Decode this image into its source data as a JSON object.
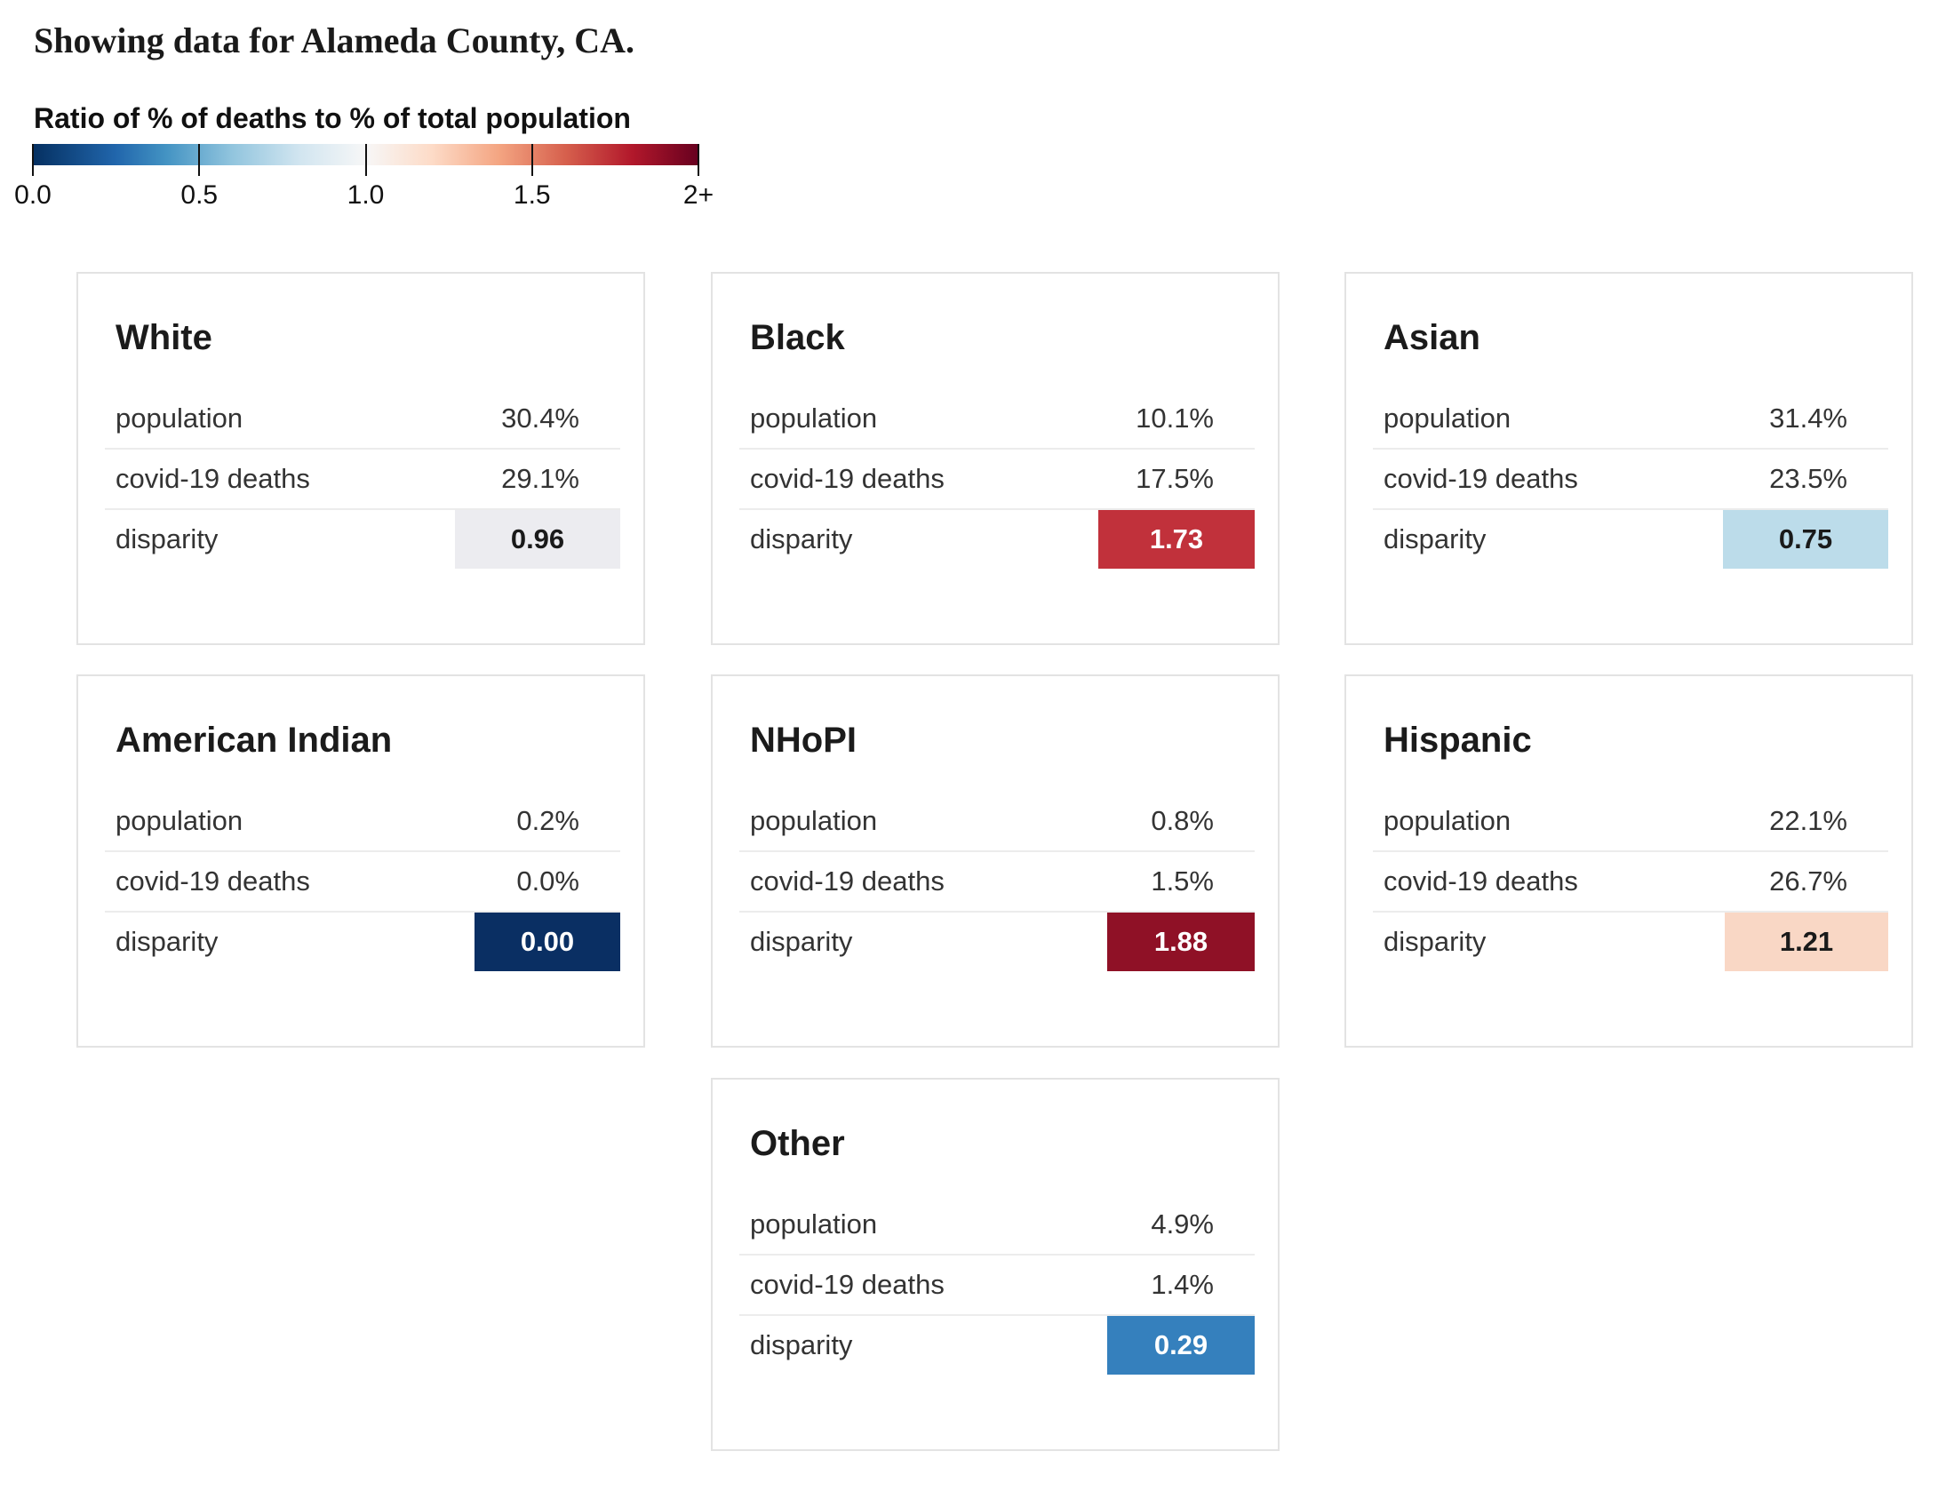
{
  "header": {
    "title": "Showing data for Alameda County, CA."
  },
  "legend": {
    "title": "Ratio of % of deaths to % of total population",
    "ticks": [
      "0.0",
      "0.5",
      "1.0",
      "1.5",
      "2+"
    ],
    "tick_values": [
      0,
      0.5,
      1.0,
      1.5,
      2.0
    ],
    "domain": [
      0,
      2
    ],
    "colors": [
      "#053061",
      "#2166ac",
      "#4393c3",
      "#92c5de",
      "#d1e5f0",
      "#f7f7f7",
      "#fddbc7",
      "#f4a582",
      "#d6604d",
      "#b2182b",
      "#67001f"
    ]
  },
  "row_labels": {
    "population": "population",
    "deaths": "covid-19 deaths",
    "disparity": "disparity"
  },
  "cards": [
    {
      "name": "White",
      "population": "30.4%",
      "deaths": "29.1%",
      "disparity": "0.96",
      "disparity_value": 0.96,
      "box_color": "#ececf0",
      "text_color": "#1a1a1a"
    },
    {
      "name": "Black",
      "population": "10.1%",
      "deaths": "17.5%",
      "disparity": "1.73",
      "disparity_value": 1.73,
      "box_color": "#c1313b",
      "text_color": "#ffffff"
    },
    {
      "name": "Asian",
      "population": "31.4%",
      "deaths": "23.5%",
      "disparity": "0.75",
      "disparity_value": 0.75,
      "box_color": "#bcdcea",
      "text_color": "#1a1a1a"
    },
    {
      "name": "American Indian",
      "population": "0.2%",
      "deaths": "0.0%",
      "disparity": "0.00",
      "disparity_value": 0.0,
      "box_color": "#0a2f63",
      "text_color": "#ffffff"
    },
    {
      "name": "NHoPI",
      "population": "0.8%",
      "deaths": "1.5%",
      "disparity": "1.88",
      "disparity_value": 1.88,
      "box_color": "#8f1126",
      "text_color": "#ffffff"
    },
    {
      "name": "Hispanic",
      "population": "22.1%",
      "deaths": "26.7%",
      "disparity": "1.21",
      "disparity_value": 1.21,
      "box_color": "#f9d7c5",
      "text_color": "#1a1a1a"
    },
    {
      "name": "Other",
      "population": "4.9%",
      "deaths": "1.4%",
      "disparity": "0.29",
      "disparity_value": 0.29,
      "box_color": "#3580bd",
      "text_color": "#ffffff"
    }
  ],
  "chart_data": {
    "type": "table",
    "title": "Showing data for Alameda County, CA.",
    "columns": [
      "population",
      "covid-19 deaths",
      "disparity"
    ],
    "rows": [
      {
        "group": "White",
        "population": 30.4,
        "covid-19 deaths": 29.1,
        "disparity": 0.96
      },
      {
        "group": "Black",
        "population": 10.1,
        "covid-19 deaths": 17.5,
        "disparity": 1.73
      },
      {
        "group": "Asian",
        "population": 31.4,
        "covid-19 deaths": 23.5,
        "disparity": 0.75
      },
      {
        "group": "American Indian",
        "population": 0.2,
        "covid-19 deaths": 0.0,
        "disparity": 0.0
      },
      {
        "group": "NHoPI",
        "population": 0.8,
        "covid-19 deaths": 1.5,
        "disparity": 1.88
      },
      {
        "group": "Hispanic",
        "population": 22.1,
        "covid-19 deaths": 26.7,
        "disparity": 1.21
      },
      {
        "group": "Other",
        "population": 4.9,
        "covid-19 deaths": 1.4,
        "disparity": 0.29
      }
    ],
    "color_scale": {
      "label": "Ratio of % of deaths to % of total population",
      "domain": [
        0,
        2
      ],
      "ticks": [
        "0.0",
        "0.5",
        "1.0",
        "1.5",
        "2+"
      ]
    }
  }
}
